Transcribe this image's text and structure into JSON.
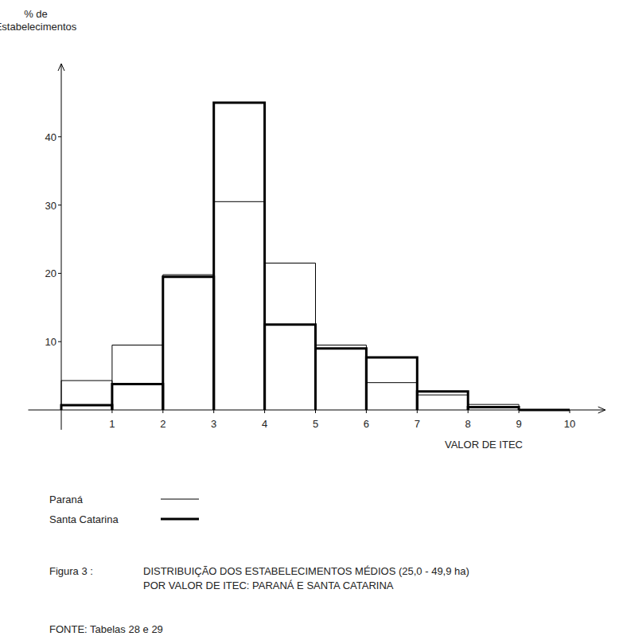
{
  "chart_data": {
    "type": "histogram",
    "ylabel": "% de\nEstabelecimentos",
    "xlabel": "VALOR DE ITEC",
    "caption_label": "Figura 3 :",
    "title": "DISTRIBUIÇÃO DOS ESTABELECIMENTOS MÉDIOS (25,0 - 49,9 ha)\nPOR VALOR DE ITEC: PARANÁ E SANTA CATARINA",
    "source": "FONTE: Tabelas 28 e 29",
    "bins": [
      0,
      1,
      2,
      3,
      4,
      5,
      6,
      7,
      8,
      9,
      10
    ],
    "series": [
      {
        "name": "Paraná",
        "color": "#000000",
        "line_style": "thin",
        "values": [
          4.3,
          9.5,
          19.8,
          30.5,
          21.5,
          9.5,
          4.0,
          2.2,
          0.8,
          0
        ]
      },
      {
        "name": "Santa Catarina",
        "color": "#000000",
        "line_style": "thick",
        "values": [
          0.7,
          3.8,
          19.5,
          45,
          12.5,
          9.0,
          7.7,
          2.7,
          0.4,
          0
        ]
      }
    ],
    "xlim": [
      -0.65,
      10.7
    ],
    "ylim": [
      -2.9,
      50.7
    ],
    "xticks": [
      1,
      2,
      3,
      4,
      5,
      6,
      7,
      8,
      9,
      10
    ],
    "yticks": [
      10,
      20,
      30,
      40
    ],
    "grid": false,
    "legend": "bottom-left"
  }
}
